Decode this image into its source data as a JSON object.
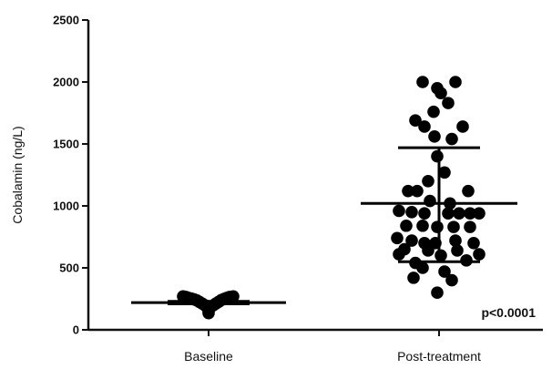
{
  "chart_data": {
    "type": "scatter",
    "title": "",
    "xlabel": "",
    "ylabel": "Cobalamin (ng/L)",
    "ylim": [
      0,
      2500
    ],
    "yticks": [
      0,
      500,
      1000,
      1500,
      2000,
      2500
    ],
    "categories": [
      "Baseline",
      "Post-treatment"
    ],
    "grid": false,
    "annotation": "p<0.0001",
    "groups": [
      {
        "category": "Baseline",
        "mean": 220,
        "sd_upper": 230,
        "sd_lower": 210,
        "points": [
          {
            "y": 270,
            "j": -0.28
          },
          {
            "y": 265,
            "j": -0.25
          },
          {
            "y": 258,
            "j": -0.22
          },
          {
            "y": 252,
            "j": -0.19
          },
          {
            "y": 246,
            "j": -0.16
          },
          {
            "y": 238,
            "j": -0.13
          },
          {
            "y": 225,
            "j": -0.1
          },
          {
            "y": 212,
            "j": -0.07
          },
          {
            "y": 198,
            "j": -0.04
          },
          {
            "y": 185,
            "j": -0.02
          },
          {
            "y": 170,
            "j": 0.0
          },
          {
            "y": 150,
            "j": 0.0
          },
          {
            "y": 135,
            "j": 0.0
          },
          {
            "y": 183,
            "j": 0.02
          },
          {
            "y": 197,
            "j": 0.05
          },
          {
            "y": 212,
            "j": 0.08
          },
          {
            "y": 226,
            "j": 0.11
          },
          {
            "y": 240,
            "j": 0.14
          },
          {
            "y": 250,
            "j": 0.17
          },
          {
            "y": 258,
            "j": 0.2
          },
          {
            "y": 265,
            "j": 0.23
          },
          {
            "y": 270,
            "j": 0.27
          }
        ]
      },
      {
        "category": "Post-treatment",
        "mean": 1020,
        "sd_upper": 1470,
        "sd_lower": 550,
        "points": [
          {
            "y": 2000,
            "j": -0.18
          },
          {
            "y": 2000,
            "j": 0.18
          },
          {
            "y": 1950,
            "j": -0.02
          },
          {
            "y": 1910,
            "j": 0.02
          },
          {
            "y": 1830,
            "j": 0.1
          },
          {
            "y": 1760,
            "j": -0.06
          },
          {
            "y": 1690,
            "j": -0.26
          },
          {
            "y": 1640,
            "j": -0.16
          },
          {
            "y": 1640,
            "j": 0.26
          },
          {
            "y": 1560,
            "j": -0.05
          },
          {
            "y": 1540,
            "j": 0.14
          },
          {
            "y": 1400,
            "j": -0.02
          },
          {
            "y": 1270,
            "j": 0.06
          },
          {
            "y": 1200,
            "j": -0.12
          },
          {
            "y": 1120,
            "j": -0.34
          },
          {
            "y": 1120,
            "j": -0.24
          },
          {
            "y": 1120,
            "j": 0.32
          },
          {
            "y": 1040,
            "j": -0.1
          },
          {
            "y": 1020,
            "j": 0.12
          },
          {
            "y": 960,
            "j": -0.44
          },
          {
            "y": 950,
            "j": -0.3
          },
          {
            "y": 940,
            "j": -0.16
          },
          {
            "y": 940,
            "j": 0.1
          },
          {
            "y": 940,
            "j": 0.22
          },
          {
            "y": 940,
            "j": 0.34
          },
          {
            "y": 940,
            "j": 0.44
          },
          {
            "y": 840,
            "j": -0.36
          },
          {
            "y": 840,
            "j": -0.18
          },
          {
            "y": 830,
            "j": -0.02
          },
          {
            "y": 830,
            "j": 0.16
          },
          {
            "y": 830,
            "j": 0.34
          },
          {
            "y": 740,
            "j": -0.46
          },
          {
            "y": 720,
            "j": -0.3
          },
          {
            "y": 700,
            "j": -0.16
          },
          {
            "y": 700,
            "j": -0.04
          },
          {
            "y": 720,
            "j": 0.18
          },
          {
            "y": 700,
            "j": 0.38
          },
          {
            "y": 650,
            "j": -0.38
          },
          {
            "y": 640,
            "j": -0.12
          },
          {
            "y": 640,
            "j": 0.2
          },
          {
            "y": 610,
            "j": -0.44
          },
          {
            "y": 610,
            "j": 0.44
          },
          {
            "y": 600,
            "j": 0.02
          },
          {
            "y": 560,
            "j": 0.3
          },
          {
            "y": 540,
            "j": -0.26
          },
          {
            "y": 500,
            "j": -0.18
          },
          {
            "y": 470,
            "j": 0.06
          },
          {
            "y": 420,
            "j": -0.28
          },
          {
            "y": 400,
            "j": 0.14
          },
          {
            "y": 300,
            "j": -0.02
          }
        ]
      }
    ]
  }
}
